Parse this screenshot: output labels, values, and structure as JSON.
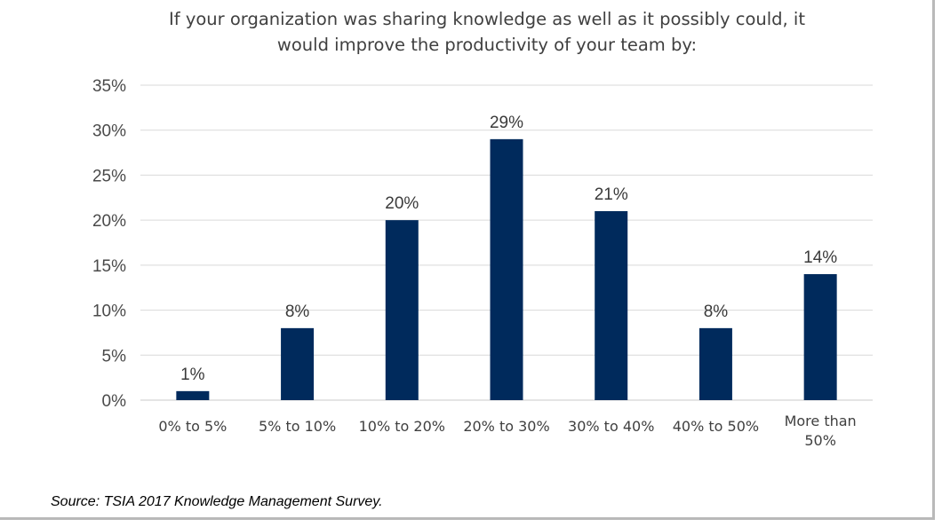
{
  "chart_data": {
    "type": "bar",
    "title_lines": [
      "If your organization was sharing knowledge as well as it possibly could, it",
      "would improve the productivity of your team by:"
    ],
    "categories": [
      [
        "0% to 5%"
      ],
      [
        "5% to 10%"
      ],
      [
        "10% to 20%"
      ],
      [
        "20% to 30%"
      ],
      [
        "30% to 40%"
      ],
      [
        "40% to 50%"
      ],
      [
        "More than",
        "50%"
      ]
    ],
    "values": [
      1,
      8,
      20,
      29,
      21,
      8,
      14
    ],
    "data_labels": [
      "1%",
      "8%",
      "20%",
      "29%",
      "21%",
      "8%",
      "14%"
    ],
    "y_ticks": [
      "0%",
      "5%",
      "10%",
      "15%",
      "20%",
      "25%",
      "30%",
      "35%"
    ],
    "ylim": [
      0,
      35
    ],
    "grid": true,
    "xlabel": "",
    "ylabel": "",
    "bar_color": "#002a5c",
    "grid_color": "#d9d9d9"
  },
  "source": "Source: TSIA 2017 Knowledge Management Survey."
}
